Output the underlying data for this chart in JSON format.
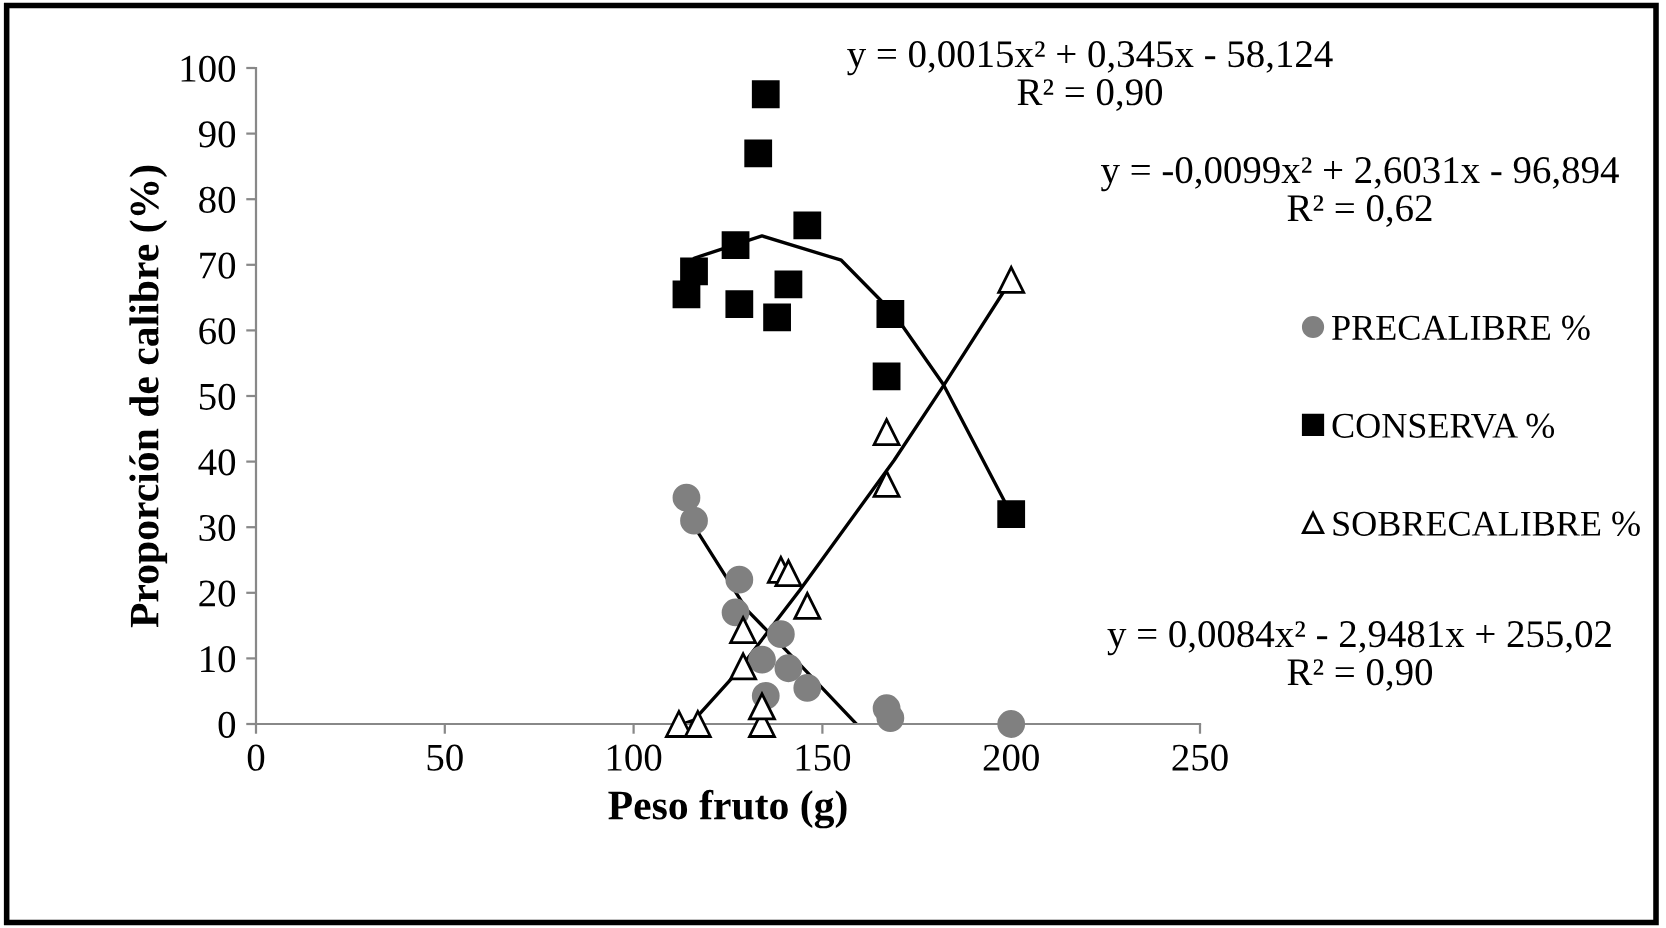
{
  "chart_data": {
    "type": "scatter",
    "xlabel": "Peso fruto (g)",
    "ylabel": "Proporción de calibre (%)",
    "xlim": [
      0,
      250
    ],
    "xticks": [
      0,
      50,
      100,
      150,
      200,
      250
    ],
    "ylim": [
      0,
      100
    ],
    "yticks": [
      0,
      10,
      20,
      30,
      40,
      50,
      60,
      70,
      80,
      90,
      100
    ],
    "grid": false,
    "legend": "right",
    "series": [
      {
        "name": "PRECALIBRE %",
        "color": "#808080",
        "marker": "circle",
        "x": [
          114,
          116,
          128,
          127,
          139,
          134,
          141,
          146,
          135,
          167,
          168,
          200
        ],
        "values": [
          34.5,
          31,
          22,
          17,
          13.7,
          9.8,
          8.5,
          5.5,
          4.3,
          2.4,
          0.9,
          0
        ]
      },
      {
        "name": "CONSERVA %",
        "color": "#000000",
        "marker": "square",
        "x": [
          114,
          116,
          127,
          135,
          133,
          146,
          128,
          141,
          138,
          168,
          167,
          200
        ],
        "values": [
          65.5,
          69,
          73,
          96,
          87,
          76,
          64,
          67,
          62,
          62.5,
          53,
          32
        ]
      },
      {
        "name": "SOBRECALIBRE %",
        "color": "#000000",
        "marker": "triangle",
        "x": [
          112,
          117,
          134,
          134,
          129,
          129,
          139,
          141,
          146,
          167,
          167,
          200
        ],
        "values": [
          0,
          0,
          0,
          2.7,
          8.8,
          14.3,
          23.5,
          23,
          18,
          36.6,
          44.5,
          67.7
        ]
      },
      {
        "type": "line",
        "color": "#000000",
        "marker": "none",
        "x": [
          114,
          130,
          144,
          159
        ],
        "values": [
          32,
          17.4,
          9.1,
          0
        ]
      },
      {
        "type": "line",
        "color": "#000000",
        "marker": "none",
        "x": [
          113,
          116,
          134,
          155,
          169,
          182,
          200
        ],
        "values": [
          66,
          71,
          74.4,
          70.7,
          62.5,
          51.8,
          32
        ]
      },
      {
        "type": "line",
        "color": "#000000",
        "marker": "none",
        "x": [
          113,
          116,
          127,
          144,
          169,
          182,
          200
        ],
        "values": [
          0,
          0.6,
          7.6,
          20.4,
          40.2,
          51.5,
          67.7
        ]
      }
    ],
    "annotations": [
      "y = 0,0015x² + 0,345x - 58,124\nR² = 0,90",
      "y = -0,0099x² + 2,6031x - 96,894\nR² = 0,62",
      "y = 0,0084x² - 2,9481x + 255,02\nR² = 0,90"
    ]
  }
}
